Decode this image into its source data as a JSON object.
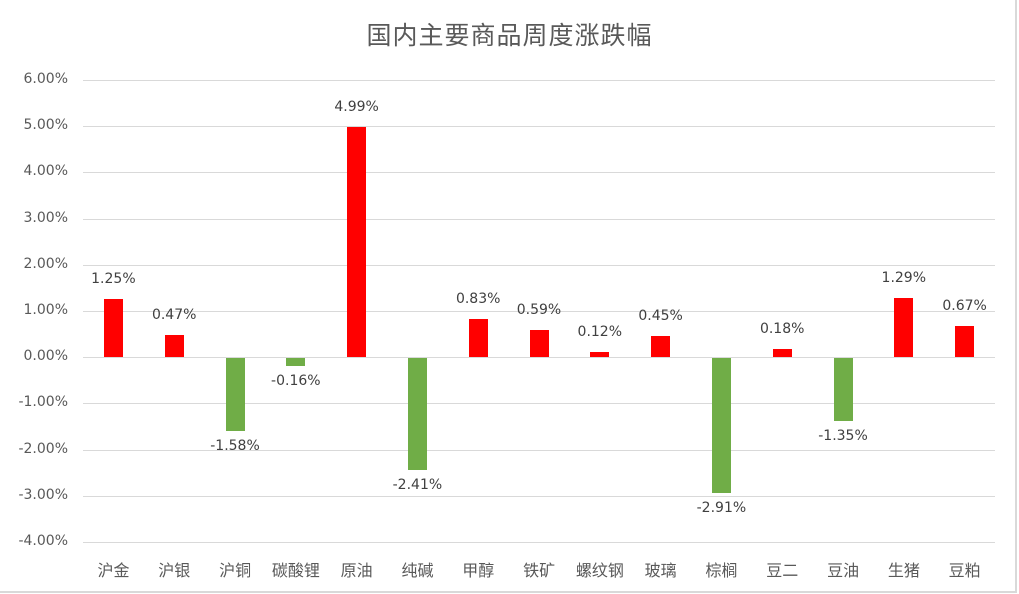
{
  "chart_data": {
    "type": "bar",
    "title": "国内主要商品周度涨跌幅",
    "xlabel": "",
    "ylabel": "",
    "ylim": [
      -0.04,
      0.06
    ],
    "grid": true,
    "legend": "none",
    "y_ticks": [
      "6.00%",
      "5.00%",
      "4.00%",
      "3.00%",
      "2.00%",
      "1.00%",
      "0.00%",
      "-1.00%",
      "-2.00%",
      "-3.00%",
      "-4.00%"
    ],
    "categories": [
      "沪金",
      "沪银",
      "沪铜",
      "碳酸锂",
      "原油",
      "纯碱",
      "甲醇",
      "铁矿",
      "螺纹钢",
      "玻璃",
      "棕榈",
      "豆二",
      "豆油",
      "生猪",
      "豆粕"
    ],
    "values": [
      1.25,
      0.47,
      -1.58,
      -0.16,
      4.99,
      -2.41,
      0.83,
      0.59,
      0.12,
      0.45,
      -2.91,
      0.18,
      -1.35,
      1.29,
      0.67
    ],
    "value_unit": "%",
    "labels": [
      "1.25%",
      "0.47%",
      "-1.58%",
      "-0.16%",
      "4.99%",
      "-2.41%",
      "0.83%",
      "0.59%",
      "0.12%",
      "0.45%",
      "-2.91%",
      "0.18%",
      "-1.35%",
      "1.29%",
      "0.67%"
    ],
    "colors": {
      "positive": "#ff0000",
      "negative": "#70ad47",
      "grid": "#d9d9d9",
      "text": "#595959"
    }
  }
}
